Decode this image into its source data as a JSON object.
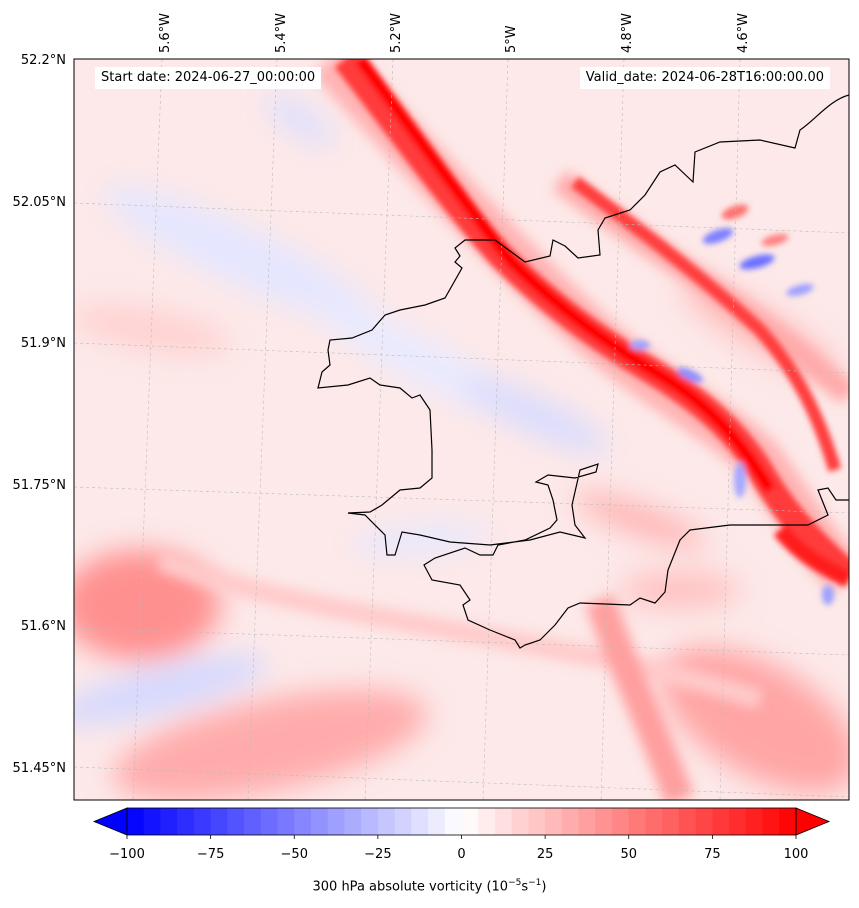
{
  "map": {
    "start_label": "Start date: 2024-06-27_00:00:00",
    "valid_label": "Valid_date: 2024-06-28T16:00:00.00",
    "lon_labels": [
      "5.6°W",
      "5.4°W",
      "5.2°W",
      "5°W",
      "4.8°W",
      "4.6°W"
    ],
    "lat_labels": [
      "52.2°N",
      "52.05°N",
      "51.9°N",
      "51.75°N",
      "51.6°N",
      "51.45°N"
    ],
    "field": "300 hPa absolute vorticity",
    "units_text": "(10",
    "units_exp1": "−5",
    "units_mid": "s",
    "units_exp2": "−1",
    "units_close": ")"
  },
  "colorbar": {
    "ticks": [
      "−100",
      "−75",
      "−50",
      "−25",
      "0",
      "25",
      "50",
      "75",
      "100"
    ],
    "values": [
      -100,
      -75,
      -50,
      -25,
      0,
      25,
      50,
      75,
      100
    ],
    "min": -110,
    "max": 110,
    "low_color": "#0000ff",
    "high_color": "#ff0000"
  },
  "colors": {
    "frame": "#000000",
    "coast": "#000000",
    "grid": "#bbbbbb"
  }
}
